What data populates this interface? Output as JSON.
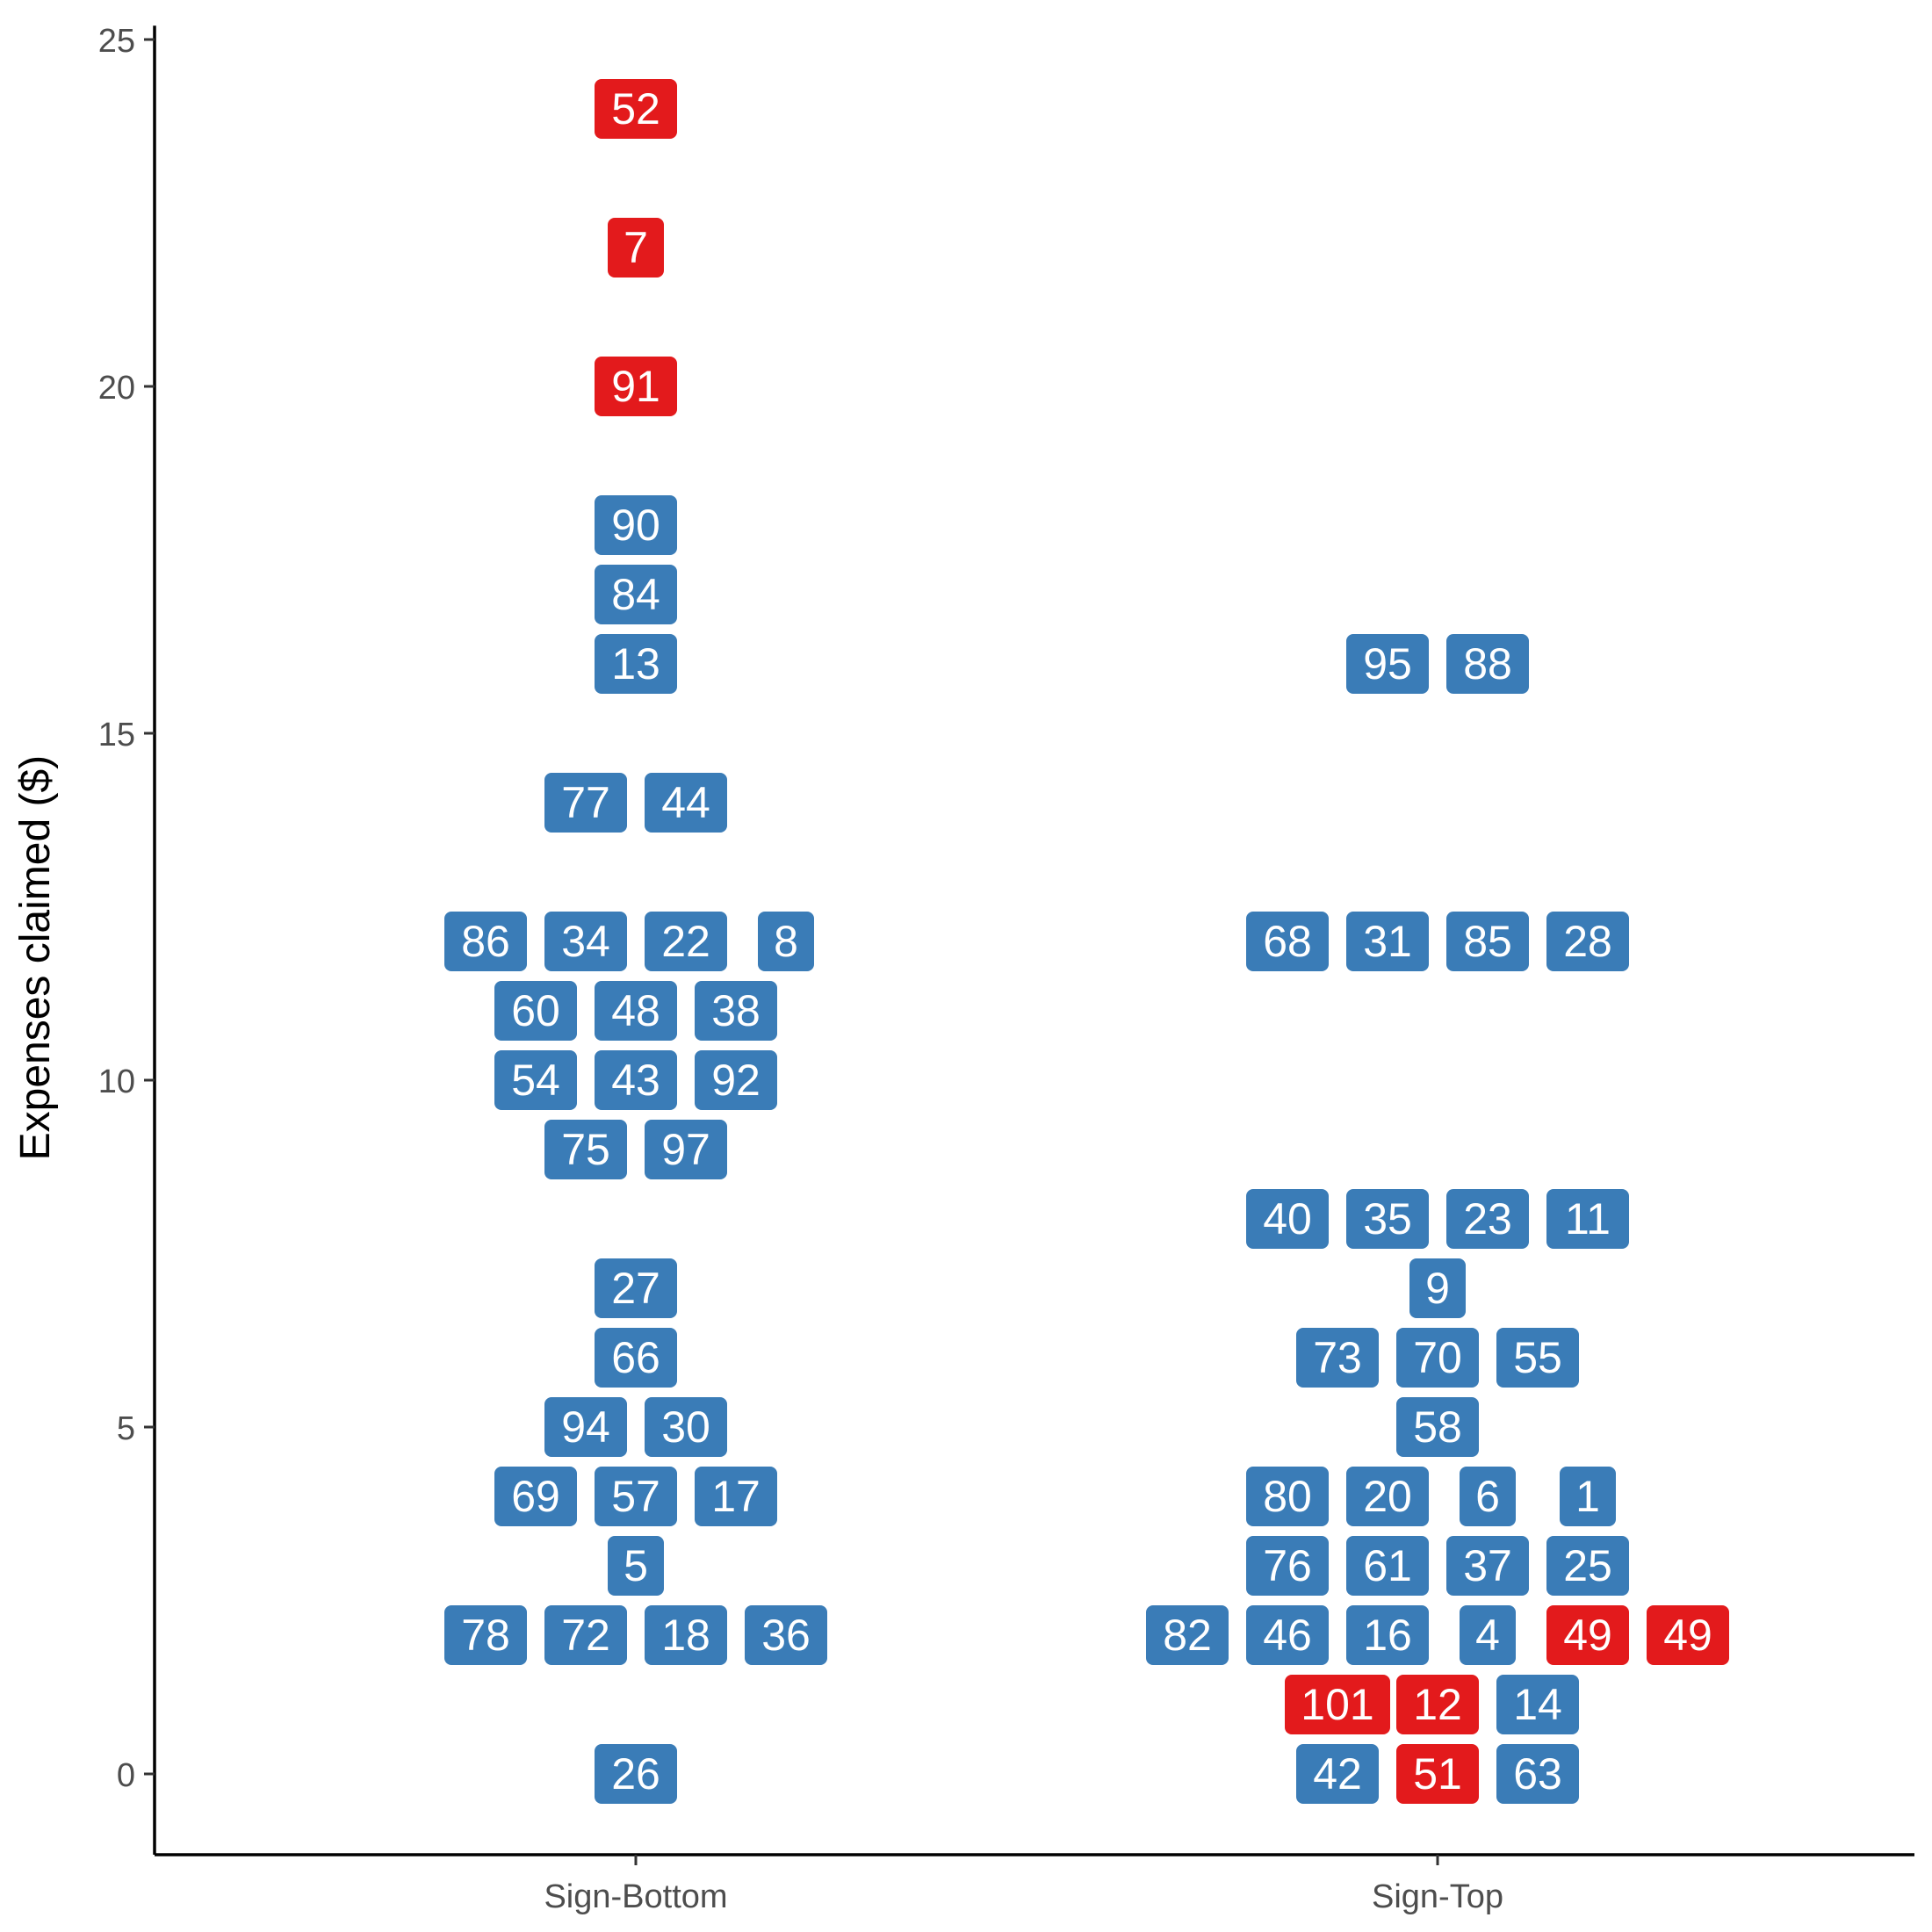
{
  "chart_data": {
    "type": "scatter",
    "ylabel": "Expenses claimed ($)",
    "xlabel": "",
    "categories": [
      "Sign-Bottom",
      "Sign-Top"
    ],
    "ylim": [
      -1.2,
      25.2
    ],
    "yticks": [
      0,
      5,
      10,
      15,
      20,
      25
    ],
    "grid": false,
    "legend": "none",
    "colors": {
      "regular": "#3a7cb7",
      "highlight": "#e31a1c",
      "label": "#ffffff"
    },
    "points": [
      {
        "group": "Sign-Bottom",
        "y": 24,
        "slot": 0,
        "label": "52",
        "highlight": true
      },
      {
        "group": "Sign-Bottom",
        "y": 22,
        "slot": 0,
        "label": "7",
        "highlight": true
      },
      {
        "group": "Sign-Bottom",
        "y": 20,
        "slot": 0,
        "label": "91",
        "highlight": true
      },
      {
        "group": "Sign-Bottom",
        "y": 18,
        "slot": 0,
        "label": "90",
        "highlight": false
      },
      {
        "group": "Sign-Bottom",
        "y": 17,
        "slot": 0,
        "label": "84",
        "highlight": false
      },
      {
        "group": "Sign-Bottom",
        "y": 16,
        "slot": 0,
        "label": "13",
        "highlight": false
      },
      {
        "group": "Sign-Bottom",
        "y": 14,
        "slot": -0.5,
        "label": "77",
        "highlight": false
      },
      {
        "group": "Sign-Bottom",
        "y": 14,
        "slot": 0.5,
        "label": "44",
        "highlight": false
      },
      {
        "group": "Sign-Bottom",
        "y": 12,
        "slot": -1.5,
        "label": "86",
        "highlight": false
      },
      {
        "group": "Sign-Bottom",
        "y": 12,
        "slot": -0.5,
        "label": "34",
        "highlight": false
      },
      {
        "group": "Sign-Bottom",
        "y": 12,
        "slot": 0.5,
        "label": "22",
        "highlight": false
      },
      {
        "group": "Sign-Bottom",
        "y": 12,
        "slot": 1.5,
        "label": "8",
        "highlight": false
      },
      {
        "group": "Sign-Bottom",
        "y": 11,
        "slot": -1,
        "label": "60",
        "highlight": false
      },
      {
        "group": "Sign-Bottom",
        "y": 11,
        "slot": 0,
        "label": "48",
        "highlight": false
      },
      {
        "group": "Sign-Bottom",
        "y": 11,
        "slot": 1,
        "label": "38",
        "highlight": false
      },
      {
        "group": "Sign-Bottom",
        "y": 10,
        "slot": -1,
        "label": "54",
        "highlight": false
      },
      {
        "group": "Sign-Bottom",
        "y": 10,
        "slot": 0,
        "label": "43",
        "highlight": false
      },
      {
        "group": "Sign-Bottom",
        "y": 10,
        "slot": 1,
        "label": "92",
        "highlight": false
      },
      {
        "group": "Sign-Bottom",
        "y": 9,
        "slot": -0.5,
        "label": "75",
        "highlight": false
      },
      {
        "group": "Sign-Bottom",
        "y": 9,
        "slot": 0.5,
        "label": "97",
        "highlight": false
      },
      {
        "group": "Sign-Bottom",
        "y": 7,
        "slot": 0,
        "label": "27",
        "highlight": false
      },
      {
        "group": "Sign-Bottom",
        "y": 6,
        "slot": 0,
        "label": "66",
        "highlight": false
      },
      {
        "group": "Sign-Bottom",
        "y": 5,
        "slot": -0.5,
        "label": "94",
        "highlight": false
      },
      {
        "group": "Sign-Bottom",
        "y": 5,
        "slot": 0.5,
        "label": "30",
        "highlight": false
      },
      {
        "group": "Sign-Bottom",
        "y": 4,
        "slot": -1,
        "label": "69",
        "highlight": false
      },
      {
        "group": "Sign-Bottom",
        "y": 4,
        "slot": 0,
        "label": "57",
        "highlight": false
      },
      {
        "group": "Sign-Bottom",
        "y": 4,
        "slot": 1,
        "label": "17",
        "highlight": false
      },
      {
        "group": "Sign-Bottom",
        "y": 3,
        "slot": 0,
        "label": "5",
        "highlight": false
      },
      {
        "group": "Sign-Bottom",
        "y": 2,
        "slot": -1.5,
        "label": "78",
        "highlight": false
      },
      {
        "group": "Sign-Bottom",
        "y": 2,
        "slot": -0.5,
        "label": "72",
        "highlight": false
      },
      {
        "group": "Sign-Bottom",
        "y": 2,
        "slot": 0.5,
        "label": "18",
        "highlight": false
      },
      {
        "group": "Sign-Bottom",
        "y": 2,
        "slot": 1.5,
        "label": "36",
        "highlight": false
      },
      {
        "group": "Sign-Bottom",
        "y": 0,
        "slot": 0,
        "label": "26",
        "highlight": false
      },
      {
        "group": "Sign-Top",
        "y": 16,
        "slot": -0.5,
        "label": "95",
        "highlight": false
      },
      {
        "group": "Sign-Top",
        "y": 16,
        "slot": 0.5,
        "label": "88",
        "highlight": false
      },
      {
        "group": "Sign-Top",
        "y": 12,
        "slot": -1.5,
        "label": "68",
        "highlight": false
      },
      {
        "group": "Sign-Top",
        "y": 12,
        "slot": -0.5,
        "label": "31",
        "highlight": false
      },
      {
        "group": "Sign-Top",
        "y": 12,
        "slot": 0.5,
        "label": "85",
        "highlight": false
      },
      {
        "group": "Sign-Top",
        "y": 12,
        "slot": 1.5,
        "label": "28",
        "highlight": false
      },
      {
        "group": "Sign-Top",
        "y": 8,
        "slot": -1.5,
        "label": "40",
        "highlight": false
      },
      {
        "group": "Sign-Top",
        "y": 8,
        "slot": -0.5,
        "label": "35",
        "highlight": false
      },
      {
        "group": "Sign-Top",
        "y": 8,
        "slot": 0.5,
        "label": "23",
        "highlight": false
      },
      {
        "group": "Sign-Top",
        "y": 8,
        "slot": 1.5,
        "label": "11",
        "highlight": false
      },
      {
        "group": "Sign-Top",
        "y": 7,
        "slot": 0,
        "label": "9",
        "highlight": false
      },
      {
        "group": "Sign-Top",
        "y": 6,
        "slot": -1,
        "label": "73",
        "highlight": false
      },
      {
        "group": "Sign-Top",
        "y": 6,
        "slot": 0,
        "label": "70",
        "highlight": false
      },
      {
        "group": "Sign-Top",
        "y": 6,
        "slot": 1,
        "label": "55",
        "highlight": false
      },
      {
        "group": "Sign-Top",
        "y": 5,
        "slot": 0,
        "label": "58",
        "highlight": false
      },
      {
        "group": "Sign-Top",
        "y": 4,
        "slot": -1.5,
        "label": "80",
        "highlight": false
      },
      {
        "group": "Sign-Top",
        "y": 4,
        "slot": -0.5,
        "label": "20",
        "highlight": false
      },
      {
        "group": "Sign-Top",
        "y": 4,
        "slot": 0.5,
        "label": "6",
        "highlight": false
      },
      {
        "group": "Sign-Top",
        "y": 4,
        "slot": 1.5,
        "label": "1",
        "highlight": false
      },
      {
        "group": "Sign-Top",
        "y": 3,
        "slot": -1.5,
        "label": "76",
        "highlight": false
      },
      {
        "group": "Sign-Top",
        "y": 3,
        "slot": -0.5,
        "label": "61",
        "highlight": false
      },
      {
        "group": "Sign-Top",
        "y": 3,
        "slot": 0.5,
        "label": "37",
        "highlight": false
      },
      {
        "group": "Sign-Top",
        "y": 3,
        "slot": 1.5,
        "label": "25",
        "highlight": false
      },
      {
        "group": "Sign-Top",
        "y": 2,
        "slot": -2.5,
        "label": "82",
        "highlight": false
      },
      {
        "group": "Sign-Top",
        "y": 2,
        "slot": -1.5,
        "label": "46",
        "highlight": false
      },
      {
        "group": "Sign-Top",
        "y": 2,
        "slot": -0.5,
        "label": "16",
        "highlight": false
      },
      {
        "group": "Sign-Top",
        "y": 2,
        "slot": 0.5,
        "label": "4",
        "highlight": false
      },
      {
        "group": "Sign-Top",
        "y": 2,
        "slot": 1.5,
        "label": "49",
        "highlight": true
      },
      {
        "group": "Sign-Top",
        "y": 2,
        "slot": 2.5,
        "label": "49",
        "highlight": true
      },
      {
        "group": "Sign-Top",
        "y": 1,
        "slot": -1,
        "label": "101",
        "highlight": true
      },
      {
        "group": "Sign-Top",
        "y": 1,
        "slot": 0,
        "label": "12",
        "highlight": true
      },
      {
        "group": "Sign-Top",
        "y": 1,
        "slot": 1,
        "label": "14",
        "highlight": false
      },
      {
        "group": "Sign-Top",
        "y": 0,
        "slot": -1,
        "label": "42",
        "highlight": false
      },
      {
        "group": "Sign-Top",
        "y": 0,
        "slot": 0,
        "label": "51",
        "highlight": true
      },
      {
        "group": "Sign-Top",
        "y": 0,
        "slot": 1,
        "label": "63",
        "highlight": false
      }
    ]
  }
}
